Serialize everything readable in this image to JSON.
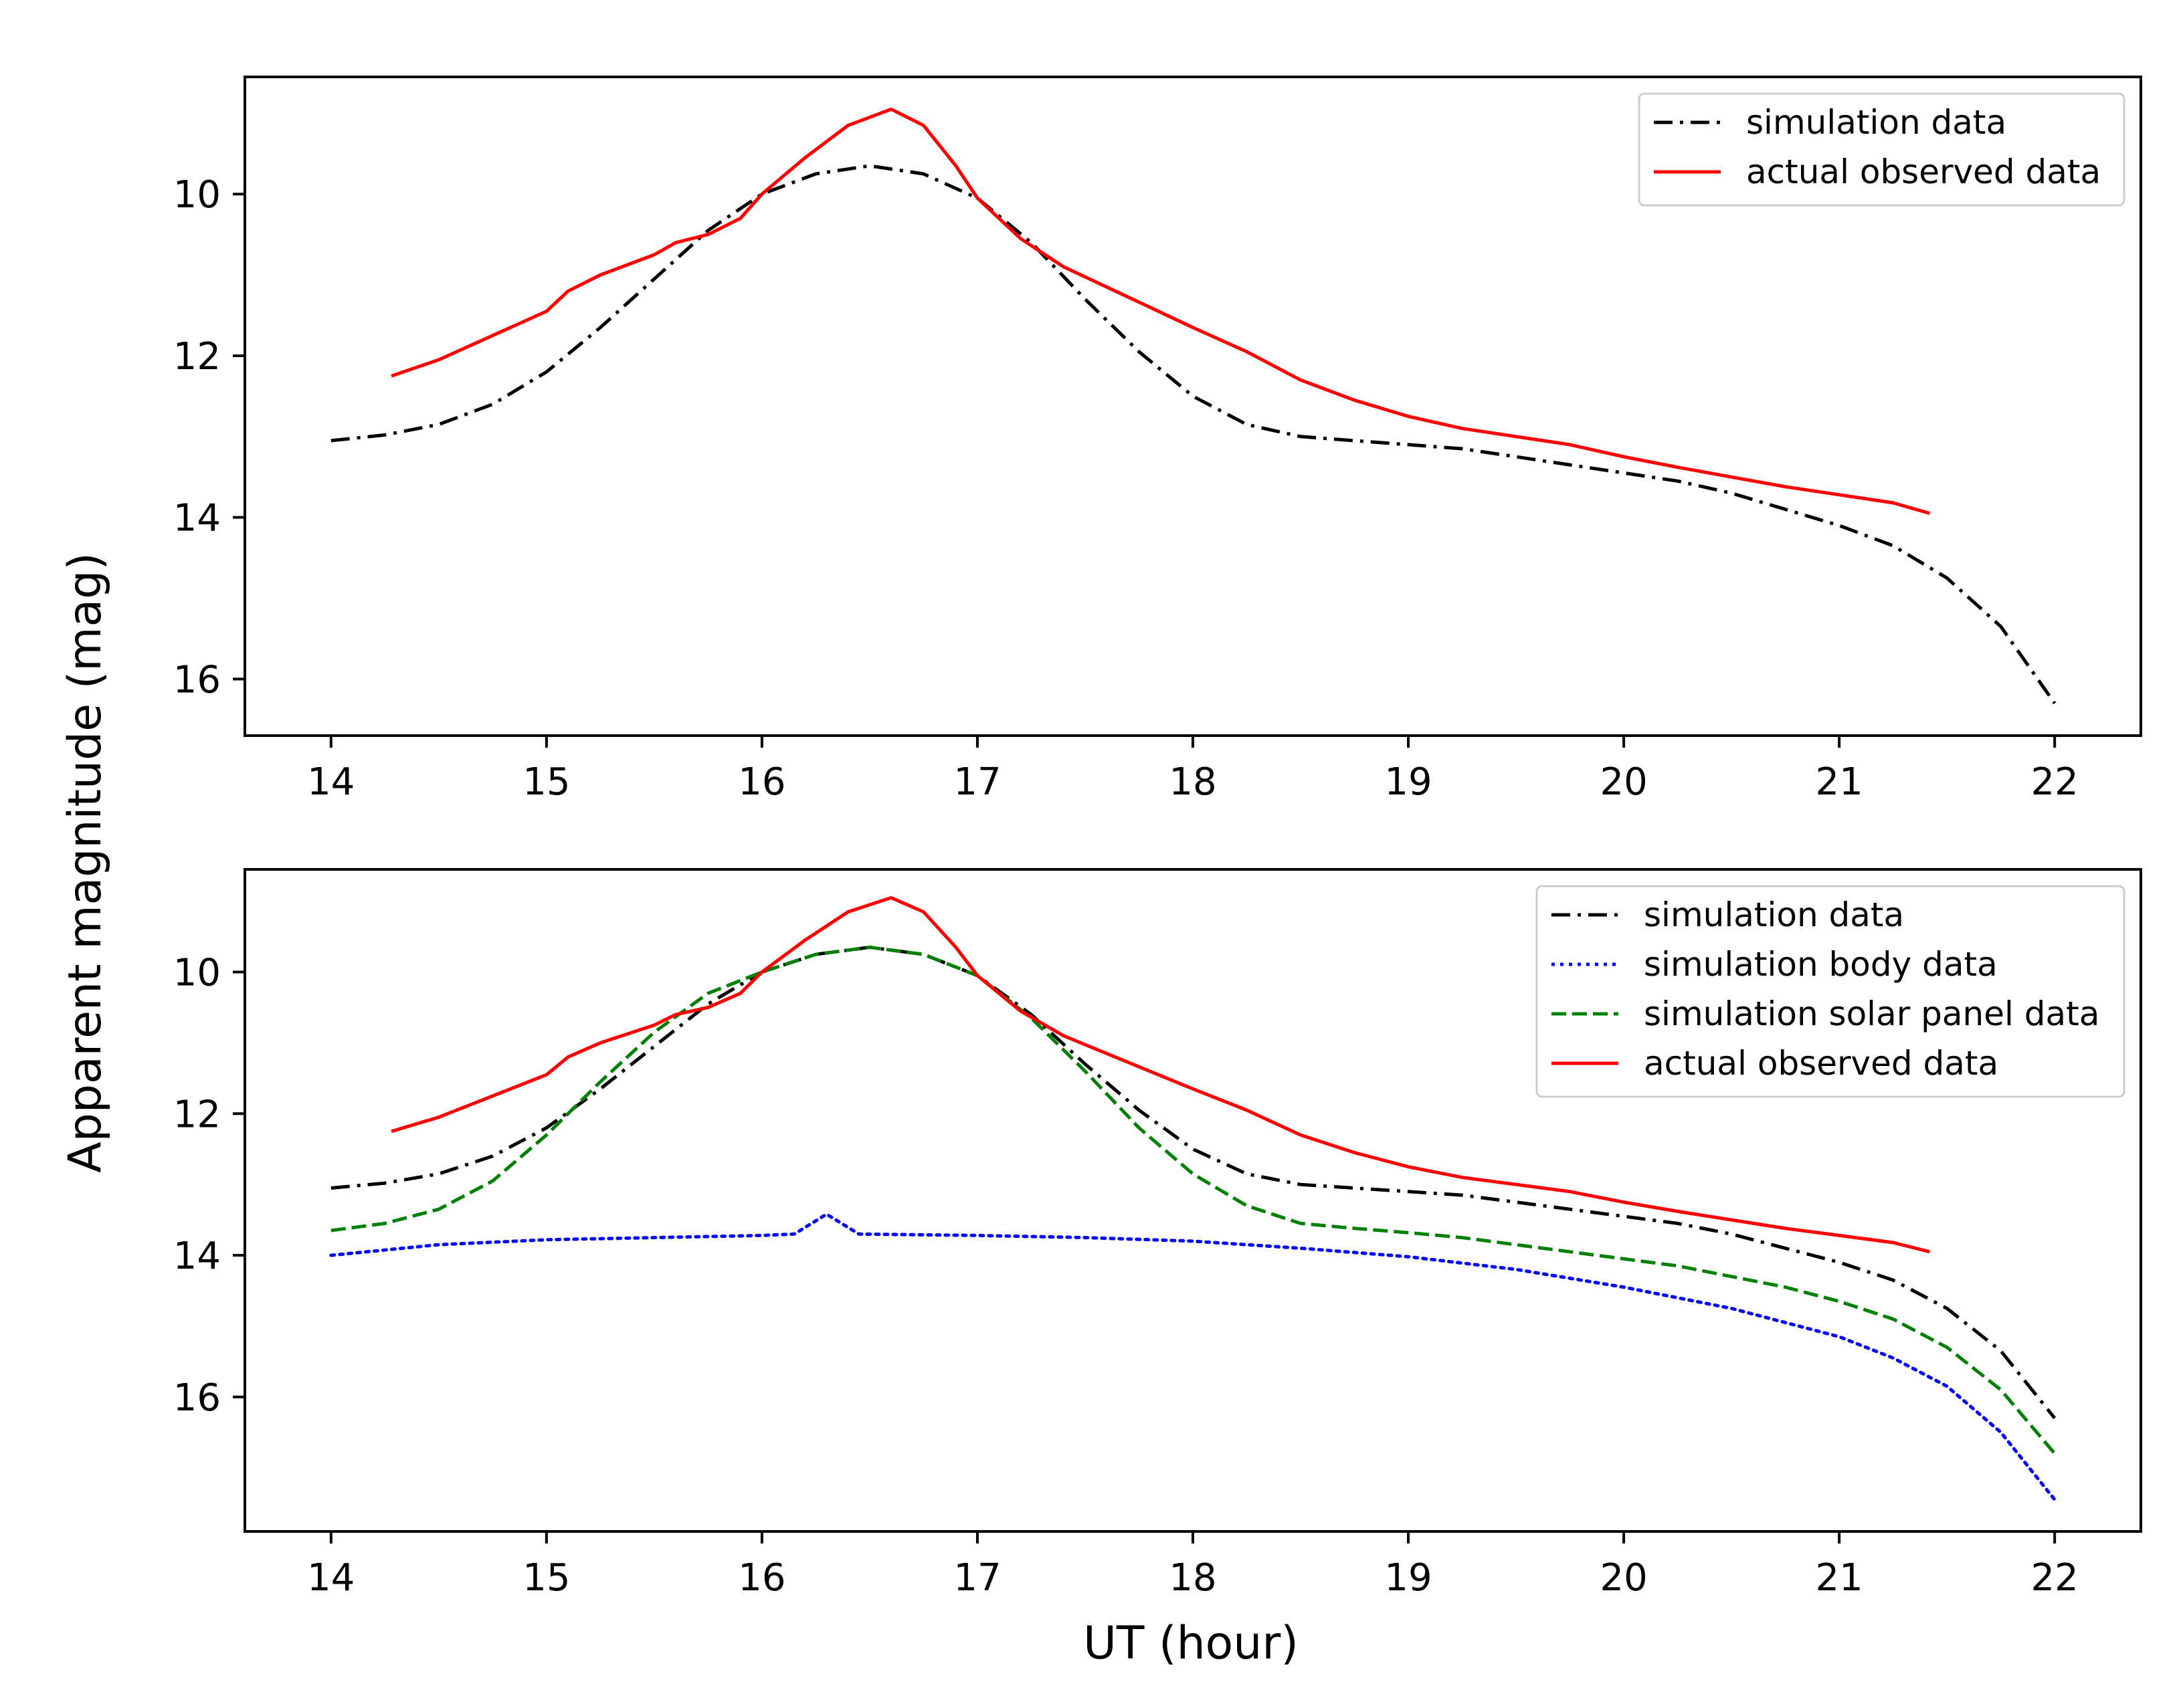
{
  "figure": {
    "ylabel": "Apparent magnitude (mag)",
    "xlabel": "UT (hour)"
  },
  "colors": {
    "simulation": "#000000",
    "body": "#0000ff",
    "solar_panel": "#008000",
    "observed": "#ff0000"
  },
  "chart_data": [
    {
      "type": "line",
      "panel": "top",
      "xlim": [
        13.6,
        22.4
      ],
      "ylim": [
        16.7,
        8.55
      ],
      "y_inverted": true,
      "xticks": [
        14,
        15,
        16,
        17,
        18,
        19,
        20,
        21,
        22
      ],
      "yticks": [
        10,
        12,
        14,
        16
      ],
      "legend_position": "top-right",
      "legend": [
        "simulation data",
        "actual observed data"
      ],
      "series": [
        {
          "name": "simulation data",
          "style": "dashdot",
          "color": "#000000",
          "x": [
            14.0,
            14.25,
            14.5,
            14.75,
            15.0,
            15.25,
            15.5,
            15.75,
            16.0,
            16.25,
            16.5,
            16.75,
            17.0,
            17.25,
            17.5,
            17.75,
            18.0,
            18.25,
            18.5,
            18.75,
            19.0,
            19.25,
            19.5,
            19.75,
            20.0,
            20.25,
            20.5,
            20.75,
            21.0,
            21.25,
            21.5,
            21.75,
            22.0
          ],
          "y": [
            13.05,
            12.98,
            12.85,
            12.6,
            12.2,
            11.65,
            11.05,
            10.45,
            10.0,
            9.75,
            9.65,
            9.75,
            10.05,
            10.6,
            11.3,
            11.95,
            12.5,
            12.85,
            13.0,
            13.05,
            13.1,
            13.15,
            13.25,
            13.35,
            13.45,
            13.55,
            13.7,
            13.9,
            14.1,
            14.35,
            14.75,
            15.35,
            16.3
          ]
        },
        {
          "name": "actual observed data",
          "style": "solid",
          "color": "#ff0000",
          "x": [
            14.28,
            14.5,
            14.75,
            15.0,
            15.1,
            15.25,
            15.5,
            15.6,
            15.75,
            15.9,
            16.0,
            16.2,
            16.4,
            16.6,
            16.75,
            16.9,
            17.0,
            17.2,
            17.4,
            17.6,
            17.8,
            18.0,
            18.25,
            18.5,
            18.75,
            19.0,
            19.25,
            19.5,
            19.75,
            20.0,
            20.25,
            20.5,
            20.75,
            21.0,
            21.25,
            21.42
          ],
          "y": [
            12.25,
            12.05,
            11.75,
            11.45,
            11.2,
            11.0,
            10.75,
            10.6,
            10.5,
            10.3,
            10.0,
            9.55,
            9.15,
            8.95,
            9.15,
            9.65,
            10.05,
            10.55,
            10.9,
            11.15,
            11.4,
            11.65,
            11.95,
            12.3,
            12.55,
            12.75,
            12.9,
            13.0,
            13.1,
            13.25,
            13.38,
            13.5,
            13.62,
            13.72,
            13.82,
            13.95
          ]
        }
      ]
    },
    {
      "type": "line",
      "panel": "bottom",
      "xlim": [
        13.6,
        22.4
      ],
      "ylim": [
        17.9,
        8.55
      ],
      "y_inverted": true,
      "xticks": [
        14,
        15,
        16,
        17,
        18,
        19,
        20,
        21,
        22
      ],
      "yticks": [
        10,
        12,
        14,
        16
      ],
      "legend_position": "top-right",
      "legend": [
        "simulation data",
        "simulation body data",
        "simulation solar panel data",
        "actual observed data"
      ],
      "series": [
        {
          "name": "simulation data",
          "style": "dashdot",
          "color": "#000000",
          "x": [
            14.0,
            14.25,
            14.5,
            14.75,
            15.0,
            15.25,
            15.5,
            15.75,
            16.0,
            16.25,
            16.5,
            16.75,
            17.0,
            17.25,
            17.5,
            17.75,
            18.0,
            18.25,
            18.5,
            18.75,
            19.0,
            19.25,
            19.5,
            19.75,
            20.0,
            20.25,
            20.5,
            20.75,
            21.0,
            21.25,
            21.5,
            21.75,
            22.0
          ],
          "y": [
            13.05,
            12.98,
            12.85,
            12.6,
            12.2,
            11.65,
            11.05,
            10.45,
            10.0,
            9.75,
            9.65,
            9.75,
            10.05,
            10.6,
            11.3,
            11.95,
            12.5,
            12.85,
            13.0,
            13.05,
            13.1,
            13.15,
            13.25,
            13.35,
            13.45,
            13.55,
            13.7,
            13.9,
            14.1,
            14.35,
            14.75,
            15.35,
            16.3
          ]
        },
        {
          "name": "simulation body data",
          "style": "dotted",
          "color": "#0000ff",
          "x": [
            14.0,
            14.5,
            15.0,
            15.5,
            16.0,
            16.15,
            16.3,
            16.45,
            17.0,
            17.5,
            18.0,
            18.5,
            19.0,
            19.5,
            20.0,
            20.5,
            21.0,
            21.25,
            21.5,
            21.75,
            22.0
          ],
          "y": [
            14.0,
            13.85,
            13.78,
            13.75,
            13.72,
            13.7,
            13.42,
            13.7,
            13.72,
            13.75,
            13.8,
            13.9,
            14.02,
            14.2,
            14.45,
            14.75,
            15.15,
            15.45,
            15.85,
            16.5,
            17.45
          ]
        },
        {
          "name": "simulation solar panel data",
          "style": "dashed",
          "color": "#008000",
          "x": [
            14.0,
            14.25,
            14.5,
            14.75,
            15.0,
            15.25,
            15.5,
            15.75,
            16.0,
            16.25,
            16.5,
            16.75,
            17.0,
            17.25,
            17.5,
            17.75,
            18.0,
            18.25,
            18.5,
            18.75,
            19.0,
            19.25,
            19.5,
            19.75,
            20.0,
            20.25,
            20.5,
            20.75,
            21.0,
            21.25,
            21.5,
            21.75,
            22.0
          ],
          "y": [
            13.65,
            13.55,
            13.35,
            12.95,
            12.3,
            11.55,
            10.85,
            10.3,
            10.0,
            9.75,
            9.65,
            9.75,
            10.05,
            10.65,
            11.4,
            12.2,
            12.85,
            13.3,
            13.55,
            13.62,
            13.68,
            13.75,
            13.85,
            13.95,
            14.05,
            14.15,
            14.3,
            14.45,
            14.65,
            14.9,
            15.3,
            15.9,
            16.8
          ]
        },
        {
          "name": "actual observed data",
          "style": "solid",
          "color": "#ff0000",
          "x": [
            14.28,
            14.5,
            14.75,
            15.0,
            15.1,
            15.25,
            15.5,
            15.6,
            15.75,
            15.9,
            16.0,
            16.2,
            16.4,
            16.6,
            16.75,
            16.9,
            17.0,
            17.2,
            17.4,
            17.6,
            17.8,
            18.0,
            18.25,
            18.5,
            18.75,
            19.0,
            19.25,
            19.5,
            19.75,
            20.0,
            20.25,
            20.5,
            20.75,
            21.0,
            21.25,
            21.42
          ],
          "y": [
            12.25,
            12.05,
            11.75,
            11.45,
            11.2,
            11.0,
            10.75,
            10.6,
            10.5,
            10.3,
            10.0,
            9.55,
            9.15,
            8.95,
            9.15,
            9.65,
            10.05,
            10.55,
            10.9,
            11.15,
            11.4,
            11.65,
            11.95,
            12.3,
            12.55,
            12.75,
            12.9,
            13.0,
            13.1,
            13.25,
            13.38,
            13.5,
            13.62,
            13.72,
            13.82,
            13.95
          ]
        }
      ]
    }
  ]
}
